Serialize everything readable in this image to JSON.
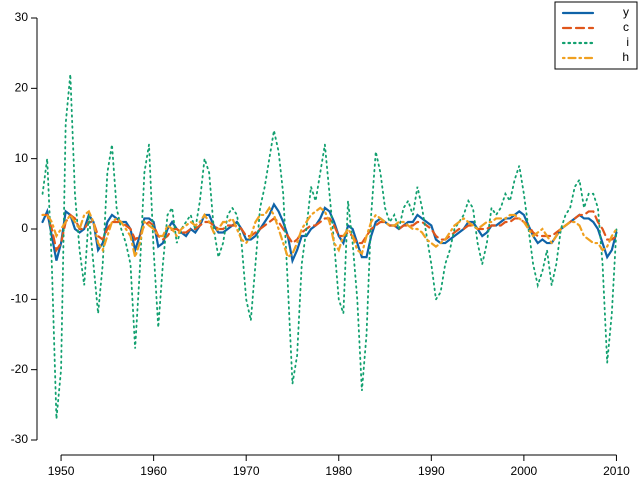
{
  "chart_data": {
    "type": "line",
    "x": [
      1948,
      1948.5,
      1949,
      1949.5,
      1950,
      1950.5,
      1951,
      1951.5,
      1952,
      1952.5,
      1953,
      1953.5,
      1954,
      1954.5,
      1955,
      1955.5,
      1956,
      1956.5,
      1957,
      1957.5,
      1958,
      1958.5,
      1959,
      1959.5,
      1960,
      1960.5,
      1961,
      1961.5,
      1962,
      1962.5,
      1963,
      1963.5,
      1964,
      1964.5,
      1965,
      1965.5,
      1966,
      1966.5,
      1967,
      1967.5,
      1968,
      1968.5,
      1969,
      1969.5,
      1970,
      1970.5,
      1971,
      1971.5,
      1972,
      1972.5,
      1973,
      1973.5,
      1974,
      1974.5,
      1975,
      1975.5,
      1976,
      1976.5,
      1977,
      1977.5,
      1978,
      1978.5,
      1979,
      1979.5,
      1980,
      1980.5,
      1981,
      1981.5,
      1982,
      1982.5,
      1983,
      1983.5,
      1984,
      1984.5,
      1985,
      1985.5,
      1986,
      1986.5,
      1987,
      1987.5,
      1988,
      1988.5,
      1989,
      1989.5,
      1990,
      1990.5,
      1991,
      1991.5,
      1992,
      1992.5,
      1993,
      1993.5,
      1994,
      1994.5,
      1995,
      1995.5,
      1996,
      1996.5,
      1997,
      1997.5,
      1998,
      1998.5,
      1999,
      1999.5,
      2000,
      2000.5,
      2001,
      2001.5,
      2002,
      2002.5,
      2003,
      2003.5,
      2004,
      2004.5,
      2005,
      2005.5,
      2006,
      2006.5,
      2007,
      2007.5,
      2008,
      2008.5,
      2009,
      2009.5,
      2010
    ],
    "series": [
      {
        "name": "y",
        "color": "#0f63a8",
        "dash": "solid",
        "values": [
          1,
          2.5,
          -1,
          -4.5,
          -2,
          2.5,
          2,
          0,
          -0.5,
          0,
          2,
          1,
          -3,
          -2,
          1,
          2,
          1.5,
          1,
          1,
          0,
          -3,
          -1,
          1.5,
          1.5,
          1,
          -2.5,
          -2,
          0,
          1,
          0,
          -0.5,
          -1,
          0,
          -0.5,
          0.5,
          2,
          2,
          0.5,
          -0.5,
          -0.5,
          0,
          0.5,
          1,
          0,
          -1.5,
          -1.5,
          -1,
          0,
          1,
          2,
          3.5,
          2.5,
          1,
          -1,
          -4.5,
          -3,
          -1,
          -1,
          0,
          0.5,
          1.5,
          3,
          2.5,
          1,
          -1,
          -2,
          0.5,
          0,
          -2,
          -4,
          -4,
          -1,
          1,
          1.5,
          1,
          0.5,
          0.5,
          0,
          0.5,
          1,
          1,
          2,
          1.5,
          1,
          0.5,
          -1.5,
          -2,
          -2,
          -1.5,
          -1,
          -0.5,
          0,
          1,
          1,
          0,
          -1,
          -0.5,
          0.5,
          0.5,
          1,
          1.5,
          1.5,
          2,
          2.5,
          2,
          0.5,
          -1,
          -2,
          -1.5,
          -2,
          -2,
          -1,
          0,
          0.5,
          1,
          1.5,
          2,
          1.5,
          1.5,
          1,
          0,
          -2,
          -4,
          -3,
          -0.5
        ]
      },
      {
        "name": "c",
        "color": "#e0561b",
        "dash": "dashed",
        "values": [
          2,
          2,
          0,
          -3,
          -2,
          1,
          2,
          1.5,
          0,
          0,
          1,
          1,
          -1,
          -1.5,
          0,
          1,
          1,
          1,
          0.5,
          0,
          -1.5,
          -1,
          0.5,
          1,
          0.5,
          -1,
          -1.5,
          -1,
          0,
          0,
          -0.5,
          -0.5,
          0,
          0,
          0.5,
          1,
          1,
          0.5,
          0,
          0,
          0.5,
          0.5,
          0.5,
          0,
          -1,
          -1,
          -0.5,
          0,
          0.5,
          1,
          1.5,
          1,
          0,
          -1,
          -2,
          -1.5,
          -0.5,
          0,
          0.5,
          0.5,
          1,
          1.5,
          1.5,
          0.5,
          -1,
          -1,
          -0.5,
          -1,
          -2,
          -2,
          -1,
          0,
          0.5,
          1,
          1,
          0.5,
          0.5,
          0,
          0.5,
          0.5,
          0.5,
          1,
          1,
          0.5,
          0,
          -1,
          -1.5,
          -1.5,
          -1,
          -0.5,
          0,
          0,
          0.5,
          0.5,
          0,
          0,
          0,
          0.5,
          0.5,
          0.5,
          1,
          1,
          1.5,
          1.5,
          1,
          0.5,
          -0.5,
          -1,
          -1,
          -1,
          -1,
          -0.5,
          0,
          0.5,
          1,
          1.5,
          2,
          2,
          2.5,
          2.5,
          1,
          0,
          -1.5,
          -1.5,
          -1
        ]
      },
      {
        "name": "i",
        "color": "#12a06f",
        "dash": "dotted",
        "values": [
          5,
          10,
          -5,
          -27,
          -20,
          15,
          22,
          5,
          -3,
          -8,
          2,
          -5,
          -12,
          -5,
          8,
          12,
          3,
          0,
          -2,
          -5,
          -17,
          -6,
          8,
          12,
          -3,
          -14,
          -5,
          2,
          3,
          -2,
          0,
          1,
          2,
          0,
          4,
          10,
          8,
          0,
          -4,
          -2,
          2,
          3,
          2,
          -2,
          -10,
          -13,
          -5,
          3,
          6,
          10,
          14,
          11,
          5,
          -8,
          -22,
          -18,
          -5,
          0,
          6,
          4,
          8,
          12,
          5,
          -2,
          -10,
          -12,
          4,
          -2,
          -10,
          -23,
          -15,
          2,
          11,
          8,
          3,
          1,
          2,
          0,
          3,
          4,
          2,
          6,
          3,
          -1,
          -5,
          -10,
          -9,
          -5,
          -3,
          0,
          1,
          2,
          4,
          3,
          -2,
          -5,
          -2,
          3,
          2,
          3,
          5,
          4,
          7,
          9,
          5,
          0,
          -5,
          -8,
          -6,
          -3,
          -8,
          -5,
          0,
          2,
          3,
          6,
          7,
          3,
          5,
          5,
          3,
          -5,
          -19,
          -12,
          0
        ]
      },
      {
        "name": "h",
        "color": "#f0a020",
        "dash": "dotdash",
        "values": [
          2,
          2,
          1,
          -1,
          0,
          1,
          2,
          1,
          0,
          2,
          2.5,
          1,
          -2,
          -3,
          -1,
          1,
          1.5,
          1,
          0,
          -1,
          -4,
          -2,
          1,
          0.5,
          0,
          -1,
          -1,
          0.5,
          0,
          -1,
          0,
          0.5,
          1,
          0.5,
          1,
          2,
          1,
          -0.5,
          0,
          1,
          1,
          1.5,
          0,
          -1.5,
          -2,
          -1,
          1,
          2,
          2,
          3,
          2,
          0,
          -2,
          -4,
          -3.5,
          -2,
          0,
          1,
          2,
          2.5,
          3,
          2.5,
          1,
          -2,
          -3,
          -1,
          0,
          -1,
          -3,
          -3.5,
          -1,
          1,
          2,
          1.5,
          1,
          0.5,
          0.5,
          1,
          1,
          0.5,
          0,
          0,
          -0.5,
          -1.5,
          -2,
          -2.5,
          -2,
          -1.5,
          -0.5,
          0.5,
          1,
          1.5,
          1,
          0.5,
          0,
          0.5,
          1,
          1,
          1.5,
          1.5,
          1.5,
          2,
          2,
          1.5,
          1,
          0,
          -1,
          -0.5,
          0,
          -1,
          -2,
          -1,
          0,
          0.5,
          1,
          1,
          0.5,
          -1,
          -1.5,
          -2,
          -2,
          -3,
          -2.5,
          -1,
          0
        ]
      }
    ],
    "xlim": [
      1947.4,
      2010.6
    ],
    "ylim": [
      -30,
      30
    ],
    "xticks": [
      1950,
      1960,
      1970,
      1980,
      1990,
      2000,
      2010
    ],
    "yticks": [
      -30,
      -20,
      -10,
      0,
      10,
      20,
      30
    ],
    "legend": "top-right"
  }
}
